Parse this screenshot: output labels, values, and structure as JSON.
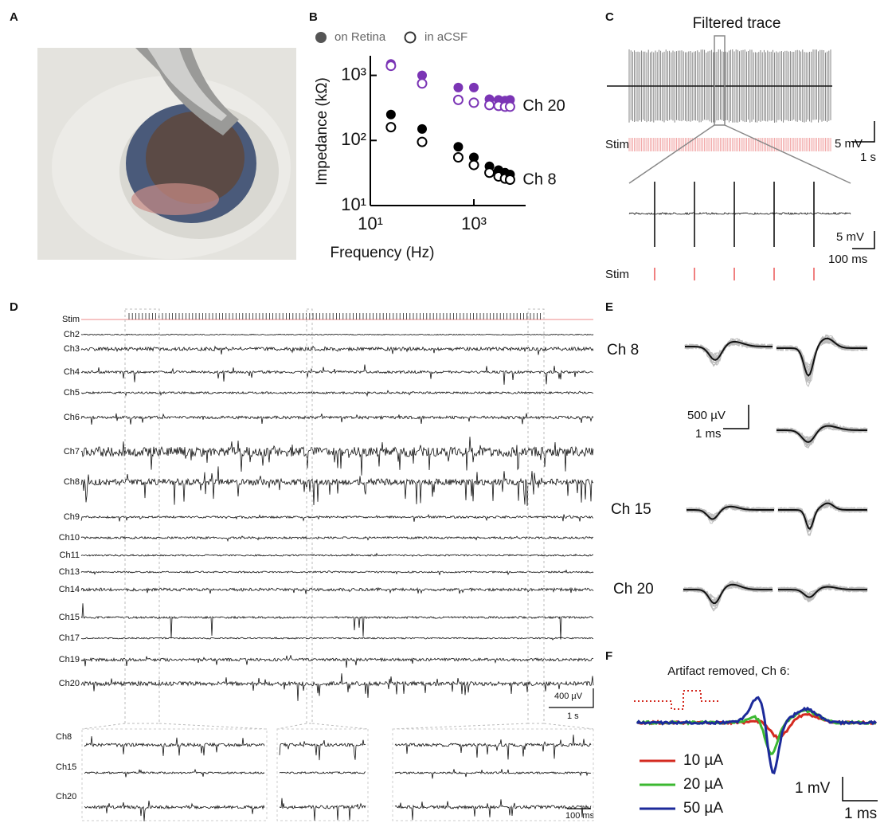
{
  "panel_labels": [
    "A",
    "B",
    "C",
    "D",
    "E",
    "F"
  ],
  "chart_data": {
    "type": "scatter",
    "xlabel": "Frequency (Hz)",
    "ylabel": "Impedance (kΩ)",
    "legend": [
      "on Retina",
      "in aCSF"
    ],
    "x": [
      25,
      100,
      500,
      1000,
      2000,
      3000,
      4000,
      5000
    ],
    "series": [
      {
        "name": "Ch 20",
        "color": "#7b35b5",
        "on_retina": [
          1500,
          1000,
          650,
          650,
          430,
          420,
          410,
          420
        ],
        "in_acsf": [
          1400,
          750,
          420,
          380,
          350,
          340,
          330,
          330
        ]
      },
      {
        "name": "Ch 8",
        "color": "#000000",
        "on_retina": [
          250,
          150,
          80,
          55,
          40,
          35,
          32,
          30
        ],
        "in_acsf": [
          160,
          95,
          55,
          42,
          32,
          28,
          26,
          25
        ]
      }
    ],
    "log_x": true,
    "log_y": true,
    "xlim": [
      10,
      10000
    ],
    "ylim": [
      10,
      2000
    ],
    "xticks": [
      {
        "value": 10,
        "label": "10¹"
      },
      {
        "value": 1000,
        "label": "10³"
      }
    ],
    "yticks": [
      {
        "value": 10,
        "label": "10¹"
      },
      {
        "value": 100,
        "label": "10²"
      },
      {
        "value": 1000,
        "label": "10³"
      }
    ]
  },
  "panel_c": {
    "title": "Filtered trace",
    "stim_label": "Stim",
    "top_scale": {
      "y": "5 mV",
      "x": "1 s"
    },
    "bottom_scale": {
      "y": "5 mV",
      "x": "100 ms"
    }
  },
  "panel_d": {
    "channels": [
      "Stim",
      "Ch2",
      "Ch3",
      "Ch4",
      "Ch5",
      "Ch6",
      "Ch7",
      "Ch8",
      "Ch9",
      "Ch10",
      "Ch11",
      "Ch13",
      "Ch14",
      "Ch15",
      "Ch17",
      "Ch19",
      "Ch20"
    ],
    "scale": {
      "y": "400 µV",
      "x": "1 s"
    },
    "inset_channels": [
      "Ch8",
      "Ch15",
      "Ch20"
    ],
    "inset_scale": "100 ms"
  },
  "panel_e": {
    "channels": [
      "Ch 8",
      "Ch 15",
      "Ch 20"
    ],
    "scale": {
      "y": "500 µV",
      "x": "1 ms"
    }
  },
  "panel_f": {
    "title": "Artifact removed, Ch 6:",
    "legend": [
      {
        "label": "10 µA",
        "color": "#d42a20"
      },
      {
        "label": "20 µA",
        "color": "#3cb832"
      },
      {
        "label": "50 µA",
        "color": "#1c2a9a"
      }
    ],
    "scale": {
      "y": "1 mV",
      "x": "1 ms"
    }
  }
}
